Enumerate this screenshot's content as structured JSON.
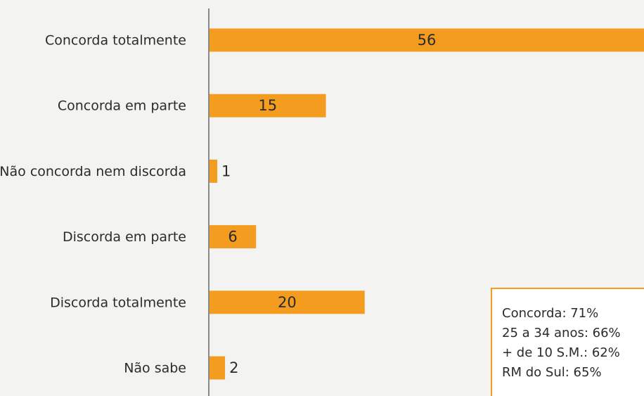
{
  "chart_data": {
    "type": "bar",
    "orientation": "horizontal",
    "categories": [
      "Concorda totalmente",
      "Concorda em parte",
      "Não concorda nem discorda",
      "Discorda em parte",
      "Discorda totalmente",
      "Não sabe"
    ],
    "values": [
      56,
      15,
      1,
      6,
      20,
      2
    ],
    "color": "#f39c1f",
    "annotation": [
      "Concorda: 71%",
      "25 a 34 anos: 66%",
      "+ de 10 S.M.: 62%",
      "RM do Sul: 65%"
    ]
  }
}
